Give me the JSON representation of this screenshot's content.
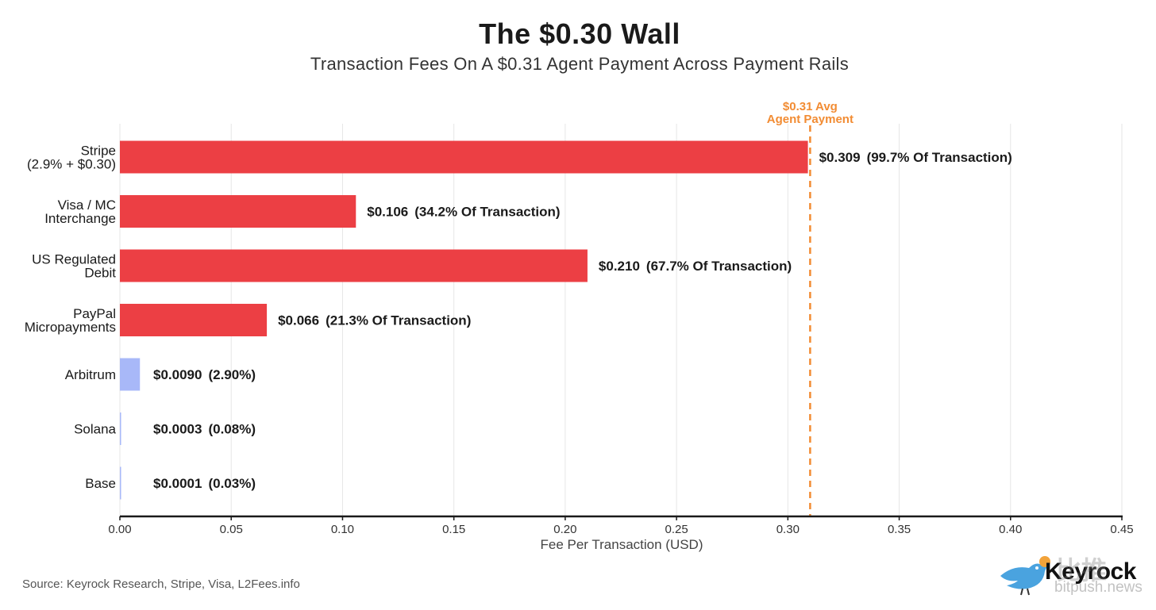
{
  "colors": {
    "fiat_bar": "#ec3f44",
    "crypto_bar": "#a8b8f8",
    "avg_line": "#f28c33",
    "axis": "#1a1a1a",
    "grid": "#e6e6e6",
    "text": "#1a1a1a"
  },
  "footer": {
    "source": "Source: Keyrock Research, Stripe, Visa, L2Fees.info",
    "brand": "Keyrock",
    "watermark_cjk": "比推",
    "watermark_site": "bitpush.news",
    "logo_icon": "bird-icon"
  },
  "chart_data": {
    "type": "bar",
    "orientation": "horizontal",
    "title": "The $0.30 Wall",
    "subtitle": "Transaction Fees On A $0.31 Agent Payment Across Payment Rails",
    "xlabel": "Fee Per Transaction (USD)",
    "xlim": [
      0,
      0.45
    ],
    "xticks": [
      "0.00",
      "0.05",
      "0.10",
      "0.15",
      "0.20",
      "0.25",
      "0.30",
      "0.35",
      "0.40",
      "0.45"
    ],
    "grid": true,
    "reference_line": {
      "value": 0.31,
      "label_line1": "$0.31 Avg",
      "label_line2": "Agent Payment",
      "style": "dashed"
    },
    "bars": [
      {
        "label": [
          "Stripe",
          "(2.9% + $0.30)"
        ],
        "value": 0.309,
        "value_label": "$0.309",
        "pct_label": "(99.7% Of Transaction)",
        "kind": "fiat"
      },
      {
        "label": [
          "Visa / MC",
          "Interchange"
        ],
        "value": 0.106,
        "value_label": "$0.106",
        "pct_label": "(34.2% Of Transaction)",
        "kind": "fiat"
      },
      {
        "label": [
          "US Regulated",
          "Debit"
        ],
        "value": 0.21,
        "value_label": "$0.210",
        "pct_label": "(67.7% Of Transaction)",
        "kind": "fiat"
      },
      {
        "label": [
          "PayPal",
          "Micropayments"
        ],
        "value": 0.066,
        "value_label": "$0.066",
        "pct_label": "(21.3% Of Transaction)",
        "kind": "fiat"
      },
      {
        "label": [
          "Arbitrum"
        ],
        "value": 0.009,
        "value_label": "$0.0090",
        "pct_label": "(2.90%)",
        "kind": "crypto"
      },
      {
        "label": [
          "Solana"
        ],
        "value": 0.0003,
        "value_label": "$0.0003",
        "pct_label": "(0.08%)",
        "kind": "crypto"
      },
      {
        "label": [
          "Base"
        ],
        "value": 0.0001,
        "value_label": "$0.0001",
        "pct_label": "(0.03%)",
        "kind": "crypto"
      }
    ]
  }
}
